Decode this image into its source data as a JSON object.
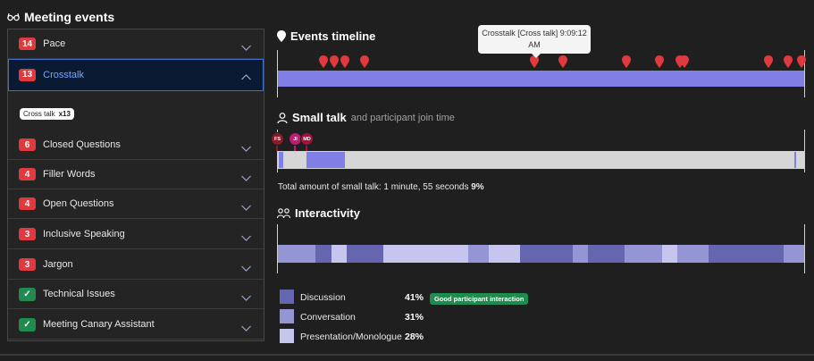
{
  "header": {
    "title": "Meeting events"
  },
  "events": [
    {
      "count": "14",
      "label": "Pace",
      "expanded": false
    },
    {
      "count": "13",
      "label": "Crosstalk",
      "expanded": true
    },
    {
      "count": "6",
      "label": "Closed Questions",
      "expanded": false
    },
    {
      "count": "4",
      "label": "Filler Words",
      "expanded": false
    },
    {
      "count": "4",
      "label": "Open Questions",
      "expanded": false
    },
    {
      "count": "3",
      "label": "Inclusive Speaking",
      "expanded": false
    },
    {
      "count": "3",
      "label": "Jargon",
      "expanded": false
    },
    {
      "count": "✓",
      "label": "Technical Issues",
      "expanded": false
    },
    {
      "count": "✓",
      "label": "Meeting Canary Assistant",
      "expanded": false
    }
  ],
  "crosstalk_chip": {
    "label": "Cross talk",
    "count": "x13"
  },
  "timeline": {
    "title": "Events timeline",
    "tooltip_line1": "Crosstalk [Cross talk] 9:09:12",
    "tooltip_line2": "AM",
    "bar_color": "#7f7fe6",
    "marker_color": "#e0393e",
    "marker_positions_pct": [
      5.7,
      7.1,
      8.6,
      11.0,
      34.0,
      38.0,
      50.3,
      55.0,
      57.0,
      57.7,
      69.2,
      72.0,
      73.7
    ]
  },
  "small_talk": {
    "title": "Small talk",
    "subtitle": "and participant join time",
    "summary_prefix": "Total amount of small talk: 1 minute, 55 seconds ",
    "summary_pct": "9%",
    "participants": [
      {
        "initials": "FS",
        "color": "#8b1a2a"
      },
      {
        "initials": "JI",
        "color": "#c01a72"
      },
      {
        "initials": "MD",
        "color": "#a0123c"
      }
    ]
  },
  "interactivity": {
    "title": "Interactivity",
    "legend": [
      {
        "label": "Discussion",
        "pct": "41%",
        "color": "#6666b0"
      },
      {
        "label": "Conversation",
        "pct": "31%",
        "color": "#9595d6"
      },
      {
        "label": "Presentation/Monologue",
        "pct": "28%",
        "color": "#c5c5ee"
      }
    ],
    "badge": "Good participant interaction"
  }
}
